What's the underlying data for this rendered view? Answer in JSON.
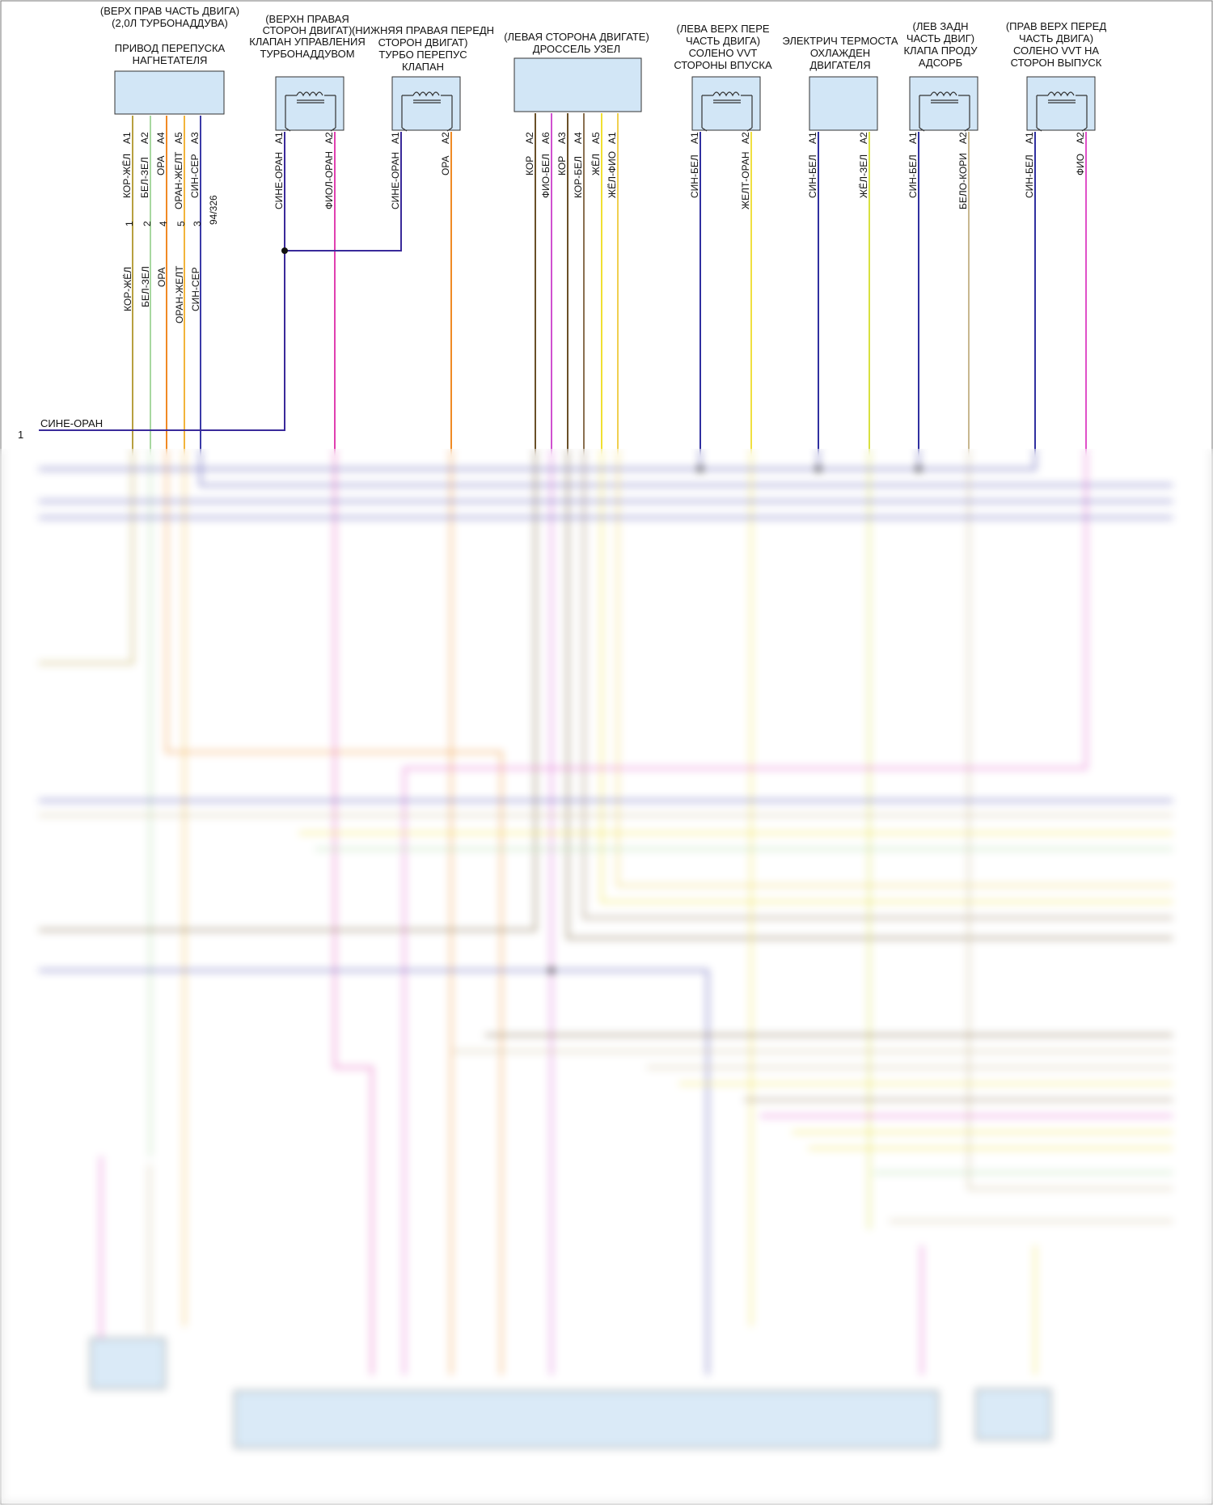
{
  "components": [
    {
      "id": "c1",
      "title": [
        "(ВЕРХ ПРАВ ЧАСТЬ ДВИГА)",
        "(2,0Л ТУРБОНАДДУВА)",
        "",
        "ПРИВОД ПЕРЕПУСКА",
        "НАГНЕТАТЕЛЯ"
      ]
    },
    {
      "id": "c2",
      "title": [
        "(ВЕРХН ПРАВАЯ",
        "СТОРОН ДВИГАТ)",
        "КЛАПАН УПРАВЛЕНИЯ",
        "ТУРБОНАДДУВОМ"
      ]
    },
    {
      "id": "c3",
      "title": [
        "(НИЖНЯЯ ПРАВАЯ ПЕРЕДН",
        "СТОРОН ДВИГАТ)",
        "ТУРБО ПЕРЕПУС",
        "КЛАПАН"
      ]
    },
    {
      "id": "c4",
      "title": [
        "(ЛЕВАЯ СТОРОНА ДВИГАТЕ)",
        "ДРОССЕЛЬ УЗЕЛ"
      ]
    },
    {
      "id": "c5",
      "title": [
        "(ЛЕВА ВЕРХ ПЕРЕ",
        "ЧАСТЬ ДВИГА)",
        "СОЛЕНО VVT",
        "СТОРОНЫ ВПУСКА"
      ]
    },
    {
      "id": "c6",
      "title": [
        "ЭЛЕКТРИЧ ТЕРМОСТА",
        "ОХЛАЖДЕН",
        "ДВИГАТЕЛЯ"
      ]
    },
    {
      "id": "c7",
      "title": [
        "(ЛЕВ ЗАДН",
        "ЧАСТЬ ДВИГ)",
        "КЛАПА ПРОДУ",
        "АДСОРБ"
      ]
    },
    {
      "id": "c8",
      "title": [
        "(ПРАВ ВЕРХ ПЕРЕД",
        "ЧАСТЬ ДВИГА)",
        "СОЛЕНО VVT НА",
        "СТОРОН ВЫПУСК"
      ]
    }
  ],
  "pins": [
    "A1",
    "A2",
    "A4",
    "A5",
    "A3",
    "A1",
    "A2",
    "A1",
    "A2",
    "A2",
    "A6",
    "A3",
    "A4",
    "A5",
    "A1",
    "A1",
    "A2",
    "A1",
    "A2",
    "A1",
    "A2",
    "A1",
    "A2"
  ],
  "wires": [
    "КОР-ЖЁЛ",
    "БЕЛ-ЗЕЛ",
    "ОРА",
    "ОРАН-ЖЕЛТ",
    "СИН-СЕР",
    "СИНЕ-ОРАН",
    "ФИОЛ-ОРАН",
    "СИНЕ-ОРАН",
    "ОРА",
    "КОР",
    "ФИО-БЕЛ",
    "КОР",
    "КОР-БЕЛ",
    "ЖЁЛ",
    "ЖЁЛ-ФИО",
    "СИН-БЕЛ",
    "ЖЕЛТ-ОРАН",
    "СИН-БЕЛ",
    "ЖЁЛ-ЗЕЛ",
    "СИН-БЕЛ",
    "БЕЛО-КОРИ",
    "СИН-БЕЛ",
    "ФИО"
  ],
  "connector_pins": [
    "1",
    "2",
    "4",
    "5",
    "3"
  ],
  "lower_wires": [
    "КОР-ЖЁЛ",
    "БЕЛ-ЗЕЛ",
    "ОРА",
    "ОРАН-ЖЕЛТ",
    "СИН-СЕР"
  ],
  "connector_ref": "94/326",
  "left_ref": {
    "num": "1",
    "wire": "СИНЕ-ОРАН"
  },
  "colors": {
    "brown_yellow": "#b8a040",
    "white_green": "#a8d8a0",
    "orange": "#f08a24",
    "orange_yellow": "#f2b43a",
    "blue_gray": "#3a3aa8",
    "blue_orange": "#3a2a9a",
    "violet_orange": "#e040b0",
    "brown": "#6a5028",
    "violet_white": "#d050d0",
    "brown_white": "#8a7050",
    "yellow": "#f0e030",
    "yellow_violet": "#f0d050",
    "blue_white": "#3030a0",
    "yellow_orange": "#f0e040",
    "yellow_green": "#d8e040",
    "white_brown": "#c8b890",
    "violet": "#e050c8",
    "box_fill": "#d2e6f6"
  }
}
